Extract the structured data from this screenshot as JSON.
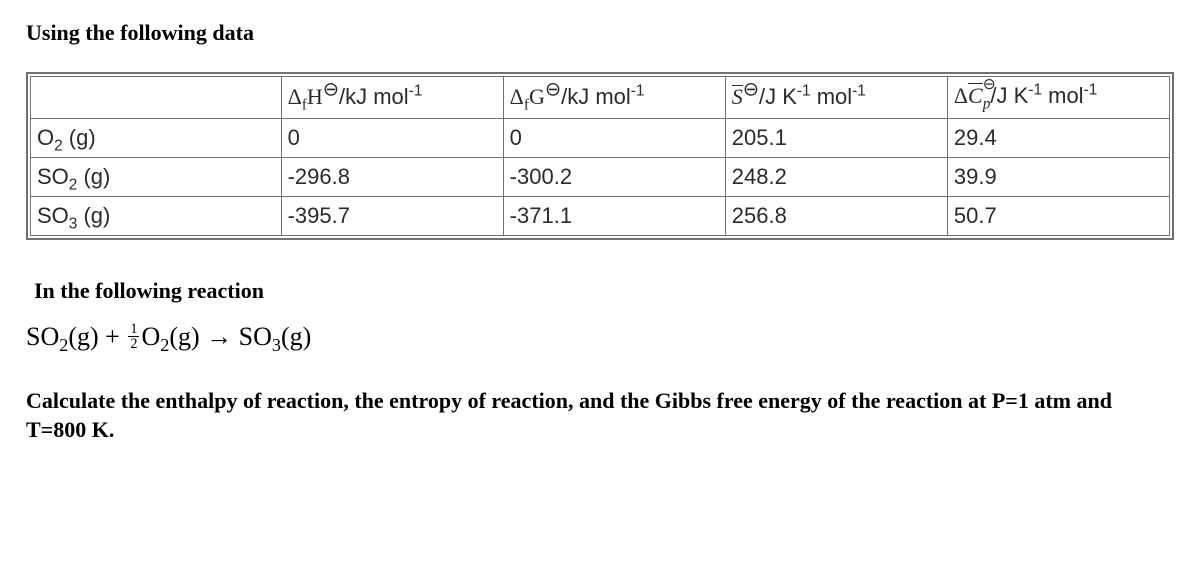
{
  "colors": {
    "text": "#000000",
    "table_text": "#2b2b2b",
    "border": "#6e7176",
    "background": "#ffffff"
  },
  "typography": {
    "body_font": "Times New Roman",
    "table_font": "Helvetica Neue / Arial",
    "body_size_pt": 16,
    "table_size_pt": 16,
    "equation_size_pt": 19
  },
  "heading": "Using the following data",
  "table": {
    "type": "table",
    "columns": [
      {
        "label": "",
        "width_pct": 22
      },
      {
        "label_html": "ΔfH⊖ /kJ mol⁻¹",
        "width_pct": 19.5
      },
      {
        "label_html": "ΔfG⊖ /kJ mol⁻¹",
        "width_pct": 19.5
      },
      {
        "label_html": "S̄⊖ /J K⁻¹ mol⁻¹",
        "width_pct": 19.5
      },
      {
        "label_html": "ΔC̄p⊖ /J K⁻¹ mol⁻¹",
        "width_pct": 19.5
      }
    ],
    "row_labels_html": [
      "O₂ (g)",
      "SO₂ (g)",
      "SO₃ (g)"
    ],
    "rows": [
      {
        "label": "O2 (g)",
        "dfH": "0",
        "dfG": "0",
        "S": "205.1",
        "dCp": "29.4"
      },
      {
        "label": "SO2 (g)",
        "dfH": "-296.8",
        "dfG": "-300.2",
        "S": "248.2",
        "dCp": "39.9"
      },
      {
        "label": "SO3 (g)",
        "dfH": "-395.7",
        "dfG": "-371.1",
        "S": "256.8",
        "dCp": "50.7"
      }
    ]
  },
  "subheading": "In the following reaction",
  "equation_plain": "SO2(g) + 1/2 O2(g) → SO3(g)",
  "prompt": "Calculate the enthalpy of reaction, the entropy of reaction, and the Gibbs free energy of the reaction at P=1 atm and T=800 K."
}
